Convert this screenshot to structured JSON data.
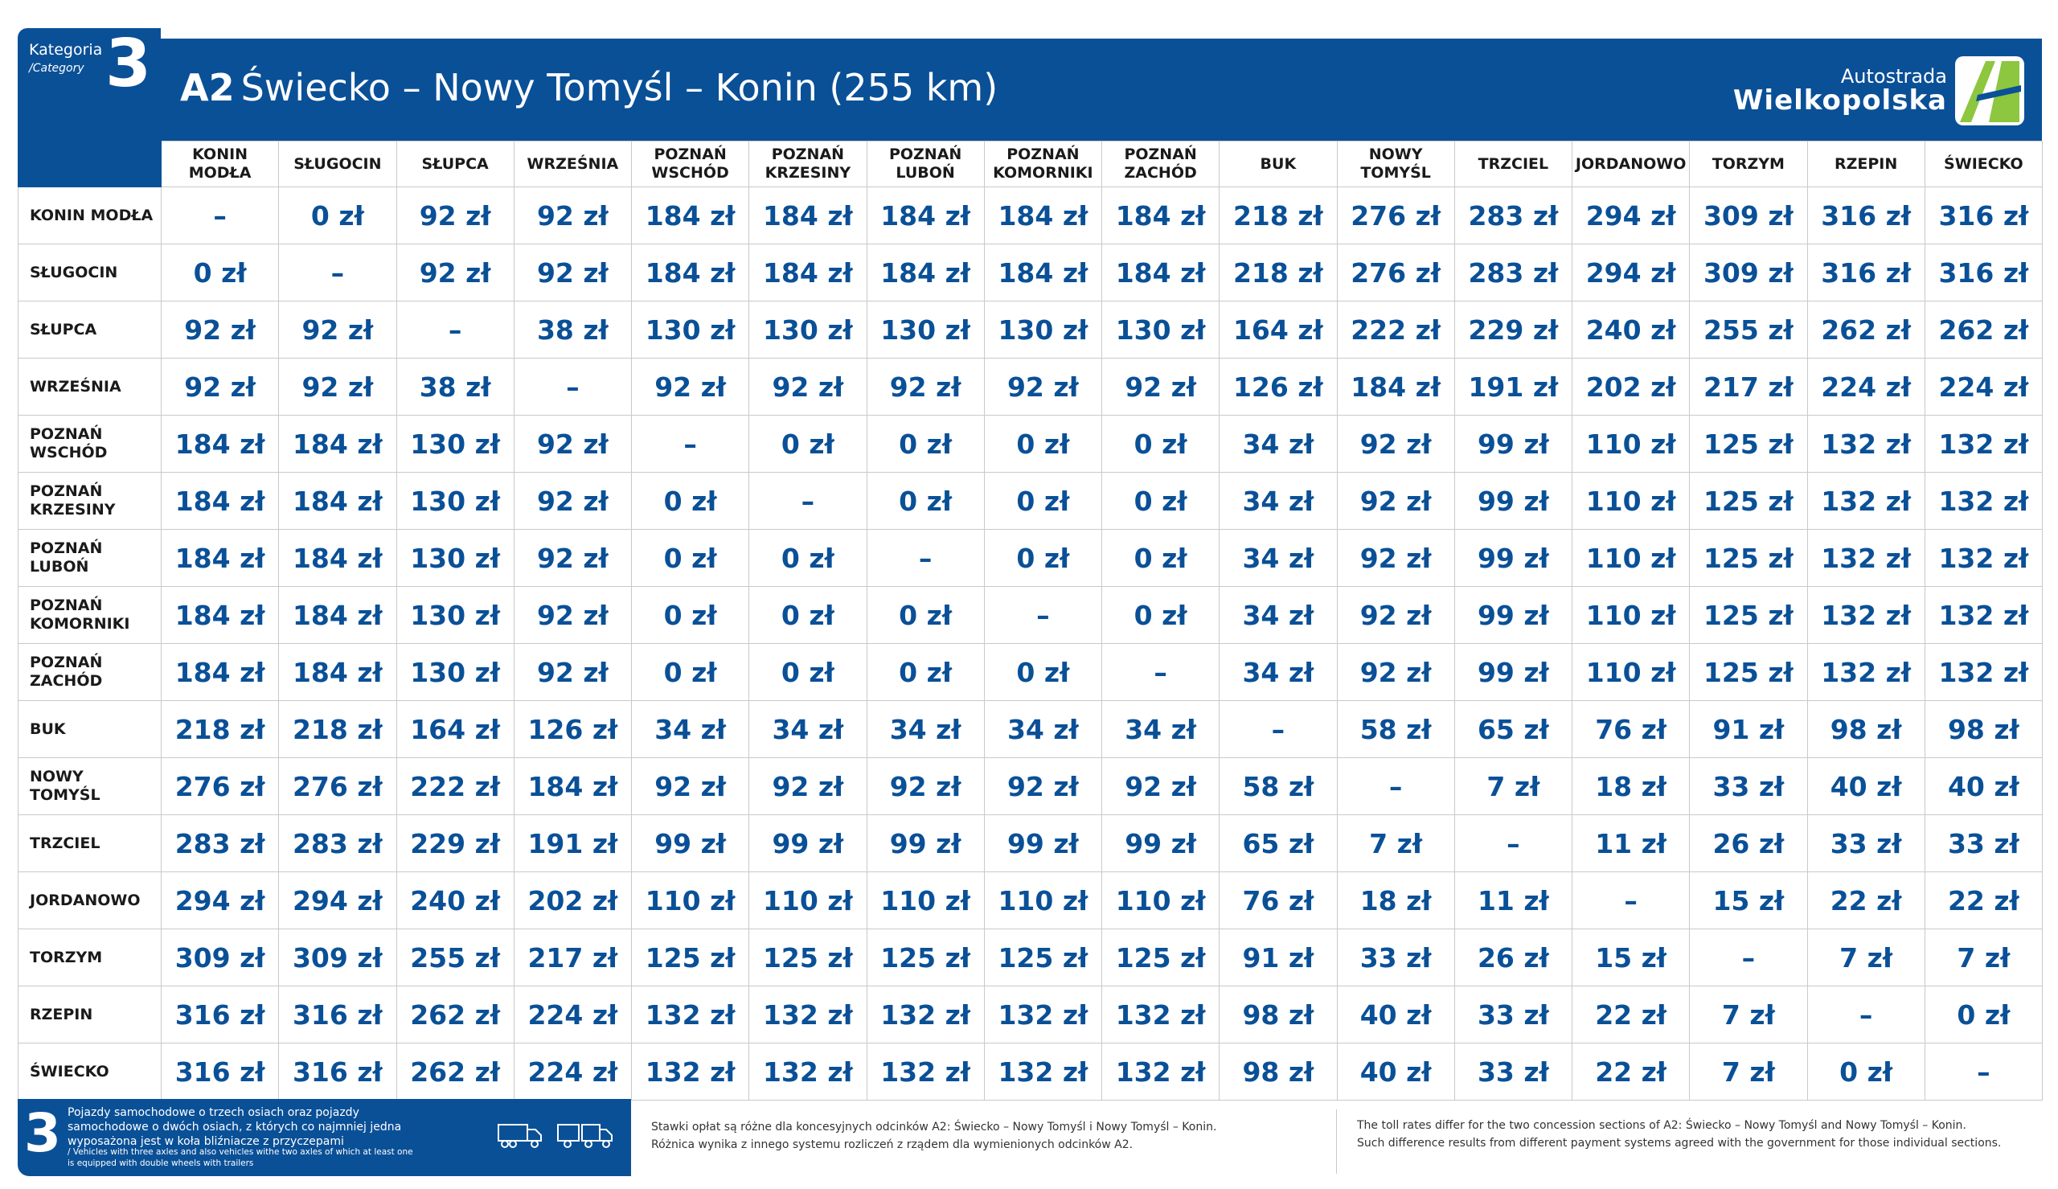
{
  "category": {
    "label": "Kategoria",
    "label_en": "/Category",
    "number": "3",
    "icons": [
      "truck-three-axle-icon",
      "truck-two-axle-trailer-icon"
    ]
  },
  "header": {
    "road": "A2",
    "route": "Świecko – Nowy Tomyśl – Konin (255 km)",
    "logo_line1": "Autostrada",
    "logo_line2": "Wielkopolska",
    "logo_icon": "autostrada-wielkopolska-logo-icon"
  },
  "colors": {
    "primary": "#0a5097",
    "logo_green": "#8dc63f",
    "grid": "#c9c9c9"
  },
  "columns": [
    "KONIN\nMODŁA",
    "SŁUGOCIN",
    "SŁUPCA",
    "WRZEŚNIA",
    "POZNAŃ\nWSCHÓD",
    "POZNAŃ\nKRZESINY",
    "POZNAŃ\nLUBOŃ",
    "POZNAŃ\nKOMORNIKI",
    "POZNAŃ\nZACHÓD",
    "BUK",
    "NOWY\nTOMYŚL",
    "TRZCIEL",
    "JORDANOWO",
    "TORZYM",
    "RZEPIN",
    "ŚWIECKO"
  ],
  "rows": [
    {
      "label": "KONIN MODŁA",
      "values": [
        "–",
        "0 zł",
        "92 zł",
        "92 zł",
        "184 zł",
        "184 zł",
        "184 zł",
        "184 zł",
        "184 zł",
        "218 zł",
        "276 zł",
        "283 zł",
        "294 zł",
        "309 zł",
        "316 zł",
        "316 zł"
      ]
    },
    {
      "label": "SŁUGOCIN",
      "values": [
        "0 zł",
        "–",
        "92 zł",
        "92 zł",
        "184 zł",
        "184 zł",
        "184 zł",
        "184 zł",
        "184 zł",
        "218 zł",
        "276 zł",
        "283 zł",
        "294 zł",
        "309 zł",
        "316 zł",
        "316 zł"
      ]
    },
    {
      "label": "SŁUPCA",
      "values": [
        "92 zł",
        "92 zł",
        "–",
        "38 zł",
        "130 zł",
        "130 zł",
        "130 zł",
        "130 zł",
        "130 zł",
        "164 zł",
        "222 zł",
        "229 zł",
        "240 zł",
        "255 zł",
        "262 zł",
        "262 zł"
      ]
    },
    {
      "label": "WRZEŚNIA",
      "values": [
        "92 zł",
        "92 zł",
        "38 zł",
        "–",
        "92 zł",
        "92 zł",
        "92 zł",
        "92 zł",
        "92 zł",
        "126 zł",
        "184 zł",
        "191 zł",
        "202 zł",
        "217 zł",
        "224 zł",
        "224 zł"
      ]
    },
    {
      "label": "POZNAŃ\nWSCHÓD",
      "values": [
        "184 zł",
        "184 zł",
        "130 zł",
        "92 zł",
        "–",
        "0 zł",
        "0 zł",
        "0 zł",
        "0 zł",
        "34 zł",
        "92 zł",
        "99 zł",
        "110 zł",
        "125 zł",
        "132 zł",
        "132 zł"
      ]
    },
    {
      "label": "POZNAŃ\nKRZESINY",
      "values": [
        "184 zł",
        "184 zł",
        "130 zł",
        "92 zł",
        "0 zł",
        "–",
        "0 zł",
        "0 zł",
        "0 zł",
        "34 zł",
        "92 zł",
        "99 zł",
        "110 zł",
        "125 zł",
        "132 zł",
        "132 zł"
      ]
    },
    {
      "label": "POZNAŃ\nLUBOŃ",
      "values": [
        "184 zł",
        "184 zł",
        "130 zł",
        "92 zł",
        "0 zł",
        "0 zł",
        "–",
        "0 zł",
        "0 zł",
        "34 zł",
        "92 zł",
        "99 zł",
        "110 zł",
        "125 zł",
        "132 zł",
        "132 zł"
      ]
    },
    {
      "label": "POZNAŃ\nKOMORNIKI",
      "values": [
        "184 zł",
        "184 zł",
        "130 zł",
        "92 zł",
        "0 zł",
        "0 zł",
        "0 zł",
        "–",
        "0 zł",
        "34 zł",
        "92 zł",
        "99 zł",
        "110 zł",
        "125 zł",
        "132 zł",
        "132 zł"
      ]
    },
    {
      "label": "POZNAŃ\nZACHÓD",
      "values": [
        "184 zł",
        "184 zł",
        "130 zł",
        "92 zł",
        "0 zł",
        "0 zł",
        "0 zł",
        "0 zł",
        "–",
        "34 zł",
        "92 zł",
        "99 zł",
        "110 zł",
        "125 zł",
        "132 zł",
        "132 zł"
      ]
    },
    {
      "label": "BUK",
      "values": [
        "218 zł",
        "218 zł",
        "164 zł",
        "126 zł",
        "34 zł",
        "34 zł",
        "34 zł",
        "34 zł",
        "34 zł",
        "–",
        "58 zł",
        "65 zł",
        "76 zł",
        "91 zł",
        "98 zł",
        "98 zł"
      ]
    },
    {
      "label": "NOWY\nTOMYŚL",
      "values": [
        "276 zł",
        "276 zł",
        "222 zł",
        "184 zł",
        "92 zł",
        "92 zł",
        "92 zł",
        "92 zł",
        "92 zł",
        "58 zł",
        "–",
        "7 zł",
        "18 zł",
        "33 zł",
        "40 zł",
        "40 zł"
      ]
    },
    {
      "label": "TRZCIEL",
      "values": [
        "283 zł",
        "283 zł",
        "229 zł",
        "191 zł",
        "99 zł",
        "99 zł",
        "99 zł",
        "99 zł",
        "99 zł",
        "65 zł",
        "7 zł",
        "–",
        "11 zł",
        "26 zł",
        "33 zł",
        "33 zł"
      ]
    },
    {
      "label": "JORDANOWO",
      "values": [
        "294 zł",
        "294 zł",
        "240 zł",
        "202 zł",
        "110 zł",
        "110 zł",
        "110 zł",
        "110 zł",
        "110 zł",
        "76 zł",
        "18 zł",
        "11 zł",
        "–",
        "15 zł",
        "22 zł",
        "22 zł"
      ]
    },
    {
      "label": "TORZYM",
      "values": [
        "309 zł",
        "309 zł",
        "255 zł",
        "217 zł",
        "125 zł",
        "125 zł",
        "125 zł",
        "125 zł",
        "125 zł",
        "91 zł",
        "33 zł",
        "26 zł",
        "15 zł",
        "–",
        "7 zł",
        "7 zł"
      ]
    },
    {
      "label": "RZEPIN",
      "values": [
        "316 zł",
        "316 zł",
        "262 zł",
        "224 zł",
        "132 zł",
        "132 zł",
        "132 zł",
        "132 zł",
        "132 zł",
        "98 zł",
        "40 zł",
        "33 zł",
        "22 zł",
        "7 zł",
        "–",
        "0 zł"
      ]
    },
    {
      "label": "ŚWIECKO",
      "values": [
        "316 zł",
        "316 zł",
        "262 zł",
        "224 zł",
        "132 zł",
        "132 zł",
        "132 zł",
        "132 zł",
        "132 zł",
        "98 zł",
        "40 zł",
        "33 zł",
        "22 zł",
        "7 zł",
        "0 zł",
        "–"
      ]
    }
  ],
  "footer": {
    "number": "3",
    "description_pl": "Pojazdy samochodowe o trzech osiach oraz pojazdy samochodowe o dwóch osiach, z których co najmniej jedna wyposażona jest w koła bliźniacze z przyczepami",
    "description_en": "/ Vehicles with three axles and also vehicles withe two axles of which at least one is equipped with double wheels with trailers",
    "note_pl_line1": "Stawki opłat są różne dla koncesyjnych odcinków A2: Świecko – Nowy Tomyśl i Nowy Tomyśl – Konin.",
    "note_pl_line2": "Różnica wynika z innego systemu rozliczeń z rządem dla wymienionych odcinków A2.",
    "note_en_line1": "The toll rates differ for the two concession sections of A2: Świecko – Nowy Tomyśl and Nowy Tomyśl – Konin.",
    "note_en_line2": "Such difference results from different payment systems agreed with the government for those individual sections."
  }
}
